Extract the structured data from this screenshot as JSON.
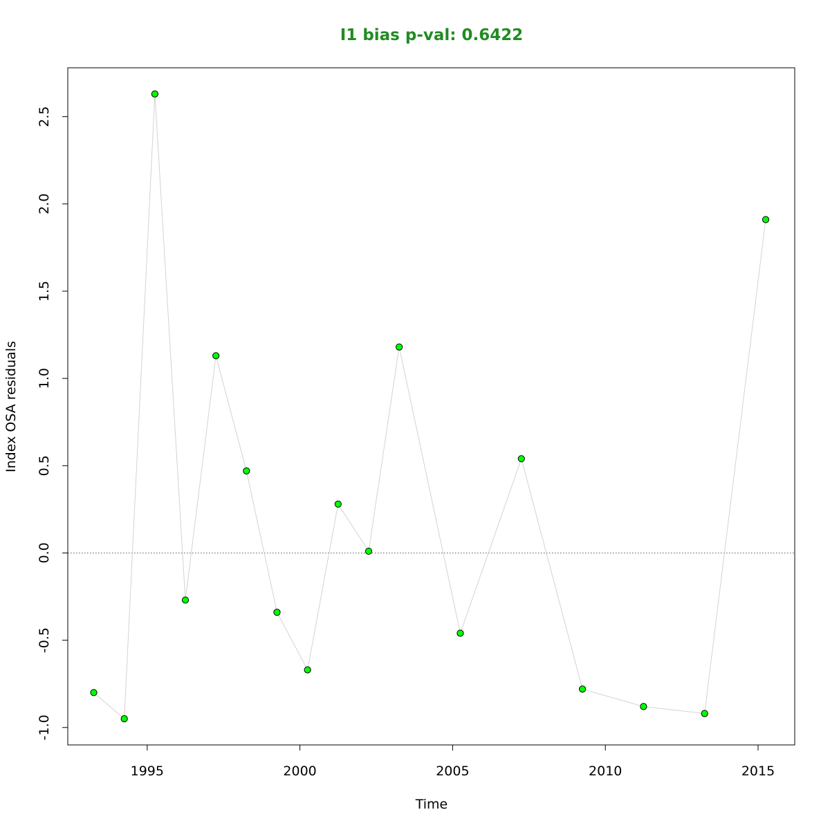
{
  "colors": {
    "title": "#228B22",
    "point_fill": "#00FF00",
    "point_stroke": "#000000",
    "line": "#D3D3D3",
    "reference_line": "#555555",
    "axis": "#000000"
  },
  "chart_data": {
    "type": "line",
    "title": "I1 bias p-val: 0.6422",
    "xlabel": "Time",
    "ylabel": "Index OSA residuals",
    "xlim": [
      1992.4,
      2016.2
    ],
    "ylim": [
      -1.1,
      2.78
    ],
    "x_ticks": [
      1995,
      2000,
      2005,
      2010,
      2015
    ],
    "x_tick_labels": [
      "1995",
      "2000",
      "2005",
      "2010",
      "2015"
    ],
    "y_ticks": [
      -1.0,
      -0.5,
      0.0,
      0.5,
      1.0,
      1.5,
      2.0,
      2.5
    ],
    "y_tick_labels": [
      "-1.0",
      "-0.5",
      "0.0",
      "0.5",
      "1.0",
      "1.5",
      "2.0",
      "2.5"
    ],
    "reference_line": {
      "y": 0.0,
      "style": "dotted"
    },
    "grid": false,
    "legend": "none",
    "series": [
      {
        "x": [
          1993.25,
          1994.25,
          1995.25,
          1996.25,
          1997.25,
          1998.25,
          1999.25,
          2000.25,
          2001.25,
          2002.25,
          2003.25,
          2005.25,
          2007.25,
          2009.25,
          2011.25,
          2013.25,
          2015.25
        ],
        "y": [
          -0.8,
          -0.95,
          2.63,
          -0.27,
          1.13,
          0.47,
          -0.34,
          -0.67,
          0.28,
          0.01,
          1.18,
          -0.46,
          0.54,
          -0.78,
          -0.88,
          -0.92,
          1.91
        ]
      }
    ]
  }
}
